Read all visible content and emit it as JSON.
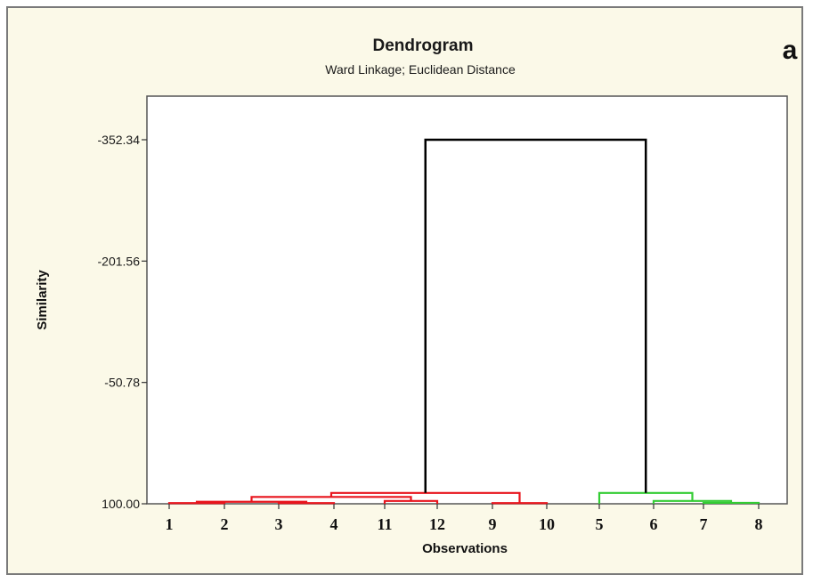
{
  "chart_data": {
    "type": "dendrogram",
    "title": "Dendrogram",
    "subtitle": "Ward Linkage; Euclidean Distance",
    "panel_label": "a",
    "ylabel": "Similarity",
    "xlabel": "Observations",
    "yticks": [
      "-352.34",
      "-201.56",
      "-50.78",
      "100.00"
    ],
    "ylim": [
      -352.34,
      100.0
    ],
    "leaf_order": [
      "1",
      "2",
      "3",
      "4",
      "11",
      "12",
      "9",
      "10",
      "5",
      "6",
      "7",
      "8"
    ],
    "colors": {
      "cluster_1": "#e8141c",
      "cluster_2": "#33cc33",
      "root": "#000000"
    },
    "merges": [
      {
        "left": "1",
        "right": "2",
        "similarity": 99.2,
        "cluster": "cluster_1"
      },
      {
        "left": "3",
        "right": "4",
        "similarity": 99.2,
        "cluster": "cluster_1"
      },
      {
        "left": "9",
        "right": "10",
        "similarity": 99.2,
        "cluster": "cluster_1"
      },
      {
        "left": "7",
        "right": "8",
        "similarity": 98.8,
        "cluster": "cluster_2"
      },
      {
        "left": "11",
        "right": "12",
        "similarity": 96.5,
        "cluster": "cluster_1"
      },
      {
        "left": "{1,2}",
        "right": "{3,4}",
        "similarity": 97.5,
        "cluster": "cluster_1"
      },
      {
        "left": "6",
        "right": "{7,8}",
        "similarity": 96.5,
        "cluster": "cluster_2"
      },
      {
        "left": "{1,2,3,4}",
        "right": "{11,12}",
        "similarity": 91.5,
        "cluster": "cluster_1"
      },
      {
        "left": "{1,2,3,4,11,12}",
        "right": "{9,10}",
        "similarity": 86.5,
        "cluster": "cluster_1"
      },
      {
        "left": "5",
        "right": "{6,7,8}",
        "similarity": 86.5,
        "cluster": "cluster_2"
      },
      {
        "left": "cluster_1",
        "right": "cluster_2",
        "similarity": -352.34,
        "cluster": "root"
      }
    ],
    "grid": false
  }
}
